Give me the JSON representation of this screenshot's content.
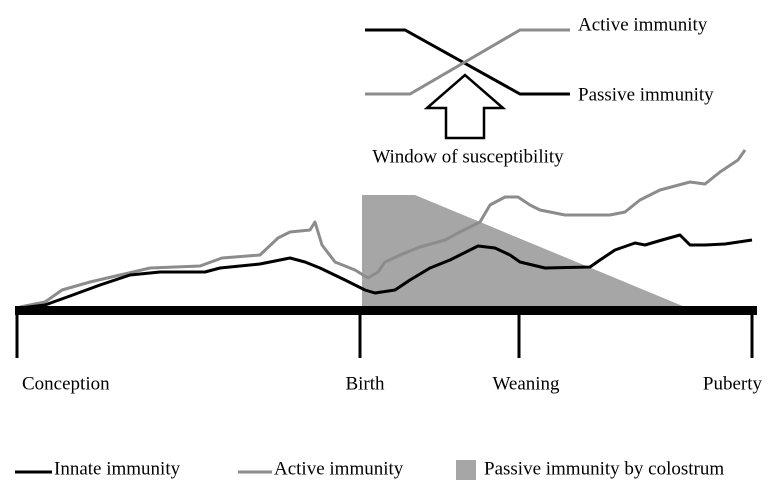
{
  "inset": {
    "active_label": "Active immunity",
    "passive_label": "Passive immunity",
    "caption": "Window of susceptibility"
  },
  "timeline": {
    "milestones": [
      "Conception",
      "Birth",
      "Weaning",
      "Puberty"
    ]
  },
  "legend": {
    "items": [
      "Innate immunity",
      "Active immunity",
      "Passive immunity by colostrum"
    ]
  }
}
